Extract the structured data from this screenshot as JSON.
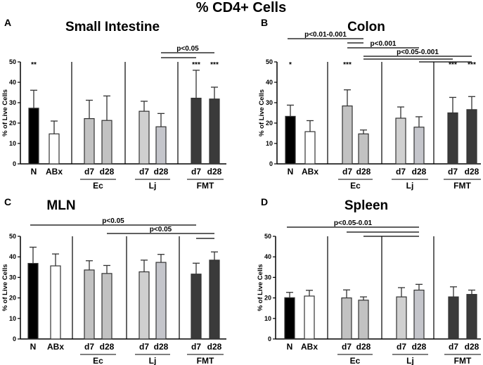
{
  "figure_title": "% CD4+ Cells",
  "colors": {
    "N": "#000000",
    "ABx": "#ffffff",
    "Ec": "#c2c2c2",
    "Lj_d7": "#d0d0d0",
    "Lj_d28": "#c4c5cb",
    "FMT": "#3a3a3a"
  },
  "chart_data": [
    {
      "type": "bar",
      "letter": "A",
      "title": "Small Intestine",
      "ylabel": "% of Live Cells",
      "ylim": [
        0,
        50
      ],
      "yticks": [
        "0",
        "10",
        "20",
        "30",
        "40",
        "50"
      ],
      "categories": [
        "N",
        "ABx",
        "d7",
        "d28",
        "d7",
        "d28",
        "d7",
        "d28"
      ],
      "groups": [
        "Ec",
        "Lj",
        "FMT"
      ],
      "values": [
        27.3,
        14.7,
        22.2,
        21.3,
        25.8,
        18.2,
        32.2,
        31.8
      ],
      "errors": [
        8.8,
        6.3,
        9.0,
        12.0,
        4.9,
        6.5,
        13.7,
        5.8
      ],
      "stars": [
        "**",
        "",
        "",
        "",
        "",
        "",
        "***",
        "***"
      ],
      "brackets": [
        {
          "from": 5,
          "to": 7,
          "label": "p<0.05"
        },
        {
          "from": 5,
          "to": 6,
          "label": ""
        }
      ]
    },
    {
      "type": "bar",
      "letter": "B",
      "title": "Colon",
      "ylabel": "% of Live Cells",
      "ylim": [
        0,
        50
      ],
      "yticks": [
        "0",
        "10",
        "20",
        "30",
        "40",
        "50"
      ],
      "categories": [
        "N",
        "ABx",
        "d7",
        "d28",
        "d7",
        "d28",
        "d7",
        "d28"
      ],
      "groups": [
        "Ec",
        "Lj",
        "FMT"
      ],
      "values": [
        23.3,
        15.8,
        28.4,
        14.7,
        22.4,
        18.0,
        25.0,
        26.6
      ],
      "errors": [
        5.5,
        5.4,
        7.9,
        1.9,
        5.5,
        5.1,
        7.6,
        6.4
      ],
      "stars": [
        "*",
        "",
        "***",
        "",
        "",
        "",
        "***",
        "***"
      ],
      "brackets": [
        {
          "from": 0,
          "to": 3,
          "label": "p<0.01-0.001"
        },
        {
          "from": 2,
          "to": 3,
          "label": ""
        },
        {
          "from": 2,
          "to": 5,
          "label": "p<0.001"
        },
        {
          "from": 3,
          "to": 7,
          "label": "p<0.05-0.001"
        },
        {
          "from": 3,
          "to": 6,
          "label": ""
        },
        {
          "from": 5,
          "to": 7,
          "label": ""
        }
      ]
    },
    {
      "type": "bar",
      "letter": "C",
      "title": "MLN",
      "ylabel": "% of Live Cells",
      "ylim": [
        0,
        50
      ],
      "yticks": [
        "0",
        "10",
        "20",
        "30",
        "40",
        "50"
      ],
      "categories": [
        "N",
        "ABx",
        "d7",
        "d28",
        "d7",
        "d28",
        "d7",
        "d28"
      ],
      "groups": [
        "Ec",
        "Lj",
        "FMT"
      ],
      "values": [
        36.8,
        35.6,
        33.6,
        31.9,
        32.7,
        37.3,
        31.6,
        38.4
      ],
      "errors": [
        7.9,
        5.8,
        4.5,
        3.9,
        5.7,
        3.9,
        5.3,
        4.0
      ],
      "stars": [
        "",
        "",
        "",
        "",
        "",
        "",
        "",
        ""
      ],
      "brackets": [
        {
          "from": 0,
          "to": 6,
          "label": "p<0.05"
        },
        {
          "from": 3,
          "to": 7,
          "label": "p<0.05"
        },
        {
          "from": 6,
          "to": 7,
          "label": ""
        }
      ]
    },
    {
      "type": "bar",
      "letter": "D",
      "title": "Spleen",
      "ylabel": "% of Live Cells",
      "ylim": [
        0,
        50
      ],
      "yticks": [
        "0",
        "10",
        "20",
        "30",
        "40",
        "50"
      ],
      "categories": [
        "N",
        "ABx",
        "d7",
        "d28",
        "d7",
        "d28",
        "d7",
        "d28"
      ],
      "groups": [
        "Ec",
        "Lj",
        "FMT"
      ],
      "values": [
        20.1,
        20.9,
        20.0,
        18.9,
        20.5,
        23.8,
        20.5,
        21.7
      ],
      "errors": [
        2.6,
        2.8,
        3.9,
        1.6,
        4.5,
        2.8,
        4.9,
        2.1
      ],
      "stars": [
        "",
        "",
        "",
        "",
        "",
        "",
        "",
        ""
      ],
      "brackets": [
        {
          "from": 0,
          "to": 5,
          "label": "p<0.05-0.01"
        },
        {
          "from": 2,
          "to": 5,
          "label": ""
        },
        {
          "from": 3,
          "to": 5,
          "label": ""
        }
      ]
    }
  ]
}
